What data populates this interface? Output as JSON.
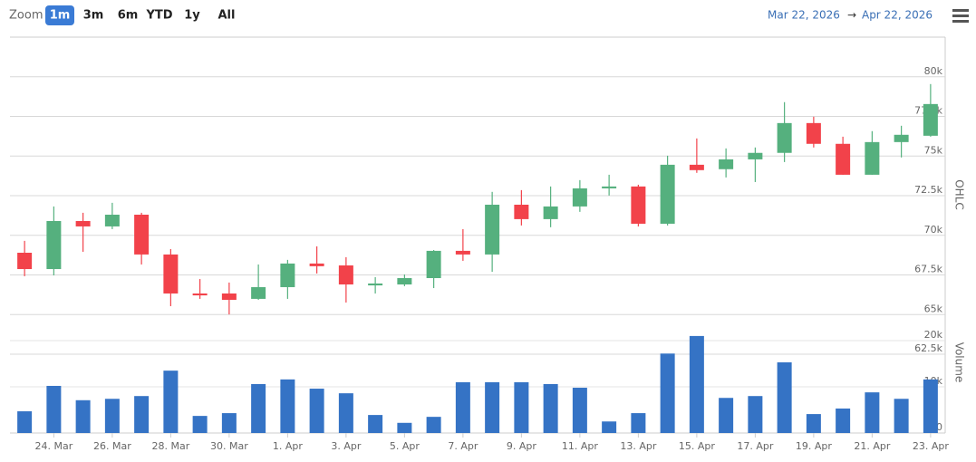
{
  "toolbar": {
    "zoom_label": "Zoom",
    "buttons": [
      "1m",
      "3m",
      "6m",
      "YTD",
      "1y",
      "All"
    ],
    "selected": 0,
    "date_from": "Mar 22, 2026",
    "arrow": "→",
    "date_to": "Apr 22, 2026"
  },
  "chart_data": {
    "type": "candlestick",
    "categories": [
      null,
      "24. Mar",
      null,
      "26. Mar",
      null,
      "28. Mar",
      null,
      "30. Mar",
      null,
      "1. Apr",
      null,
      "3. Apr",
      null,
      "5. Apr",
      null,
      "7. Apr",
      null,
      "9. Apr",
      null,
      "11. Apr",
      null,
      "13. Apr",
      null,
      "15. Apr",
      null,
      "17. Apr",
      null,
      "19. Apr",
      null,
      "21. Apr",
      null,
      "23. Apr"
    ],
    "ylabel": "OHLC",
    "y2label": "Volume",
    "ylim": [
      62500,
      82500
    ],
    "yticks": [
      {
        "value": 62500,
        "label": "62.5k"
      },
      {
        "value": 65000,
        "label": "65k"
      },
      {
        "value": 67500,
        "label": "67.5k"
      },
      {
        "value": 70000,
        "label": "70k"
      },
      {
        "value": 72500,
        "label": "72.5k"
      },
      {
        "value": 75000,
        "label": "75k"
      },
      {
        "value": 77500,
        "label": "77.5k"
      },
      {
        "value": 80000,
        "label": "80k"
      }
    ],
    "y2lim": [
      0,
      20000
    ],
    "y2ticks": [
      0,
      {
        "value": 10000,
        "label": "10k"
      },
      {
        "value": 20000,
        "label": "20k"
      }
    ],
    "grid": true,
    "series": [
      {
        "type": "candlestick",
        "up_color": "#55b07e",
        "down_color": "#f2424a",
        "open": [
          68900,
          67870,
          70900,
          70560,
          71300,
          68790,
          66330,
          66330,
          65990,
          66730,
          68220,
          68100,
          66840,
          66900,
          67300,
          69020,
          68790,
          71930,
          71020,
          71820,
          72960,
          73080,
          70730,
          74450,
          74170,
          74790,
          75200,
          77080,
          75770,
          73820,
          75880,
          76280
        ],
        "high": [
          69650,
          71820,
          71420,
          72050,
          71420,
          69130,
          67240,
          67020,
          68160,
          68450,
          69300,
          68620,
          67360,
          67530,
          69070,
          70390,
          72740,
          72850,
          73080,
          73480,
          73820,
          73190,
          75020,
          76110,
          75480,
          75540,
          78400,
          77480,
          76220,
          76570,
          76910,
          79540
        ],
        "low": [
          67420,
          67470,
          68960,
          70390,
          68160,
          65530,
          65990,
          65010,
          65930,
          65990,
          67590,
          65760,
          66330,
          66790,
          66670,
          68390,
          67700,
          70620,
          70510,
          71480,
          72510,
          70560,
          70620,
          73940,
          73650,
          73360,
          74620,
          75540,
          73820,
          73820,
          74910,
          76220
        ],
        "close": [
          67870,
          70900,
          70560,
          71300,
          68790,
          66330,
          66210,
          65930,
          66730,
          68220,
          68050,
          66900,
          66960,
          67300,
          69020,
          68790,
          71930,
          71020,
          71820,
          72960,
          73080,
          70730,
          74450,
          74110,
          74790,
          75200,
          77080,
          75770,
          73820,
          75880,
          76340,
          78280
        ]
      },
      {
        "type": "column",
        "axis": "y2",
        "color": "#3573c5",
        "values": [
          4700,
          10200,
          7100,
          7400,
          8000,
          13500,
          3700,
          4300,
          10600,
          11600,
          9600,
          8600,
          3900,
          2200,
          3500,
          11000,
          11000,
          11000,
          10600,
          9800,
          2500,
          4300,
          17200,
          21000,
          7600,
          8000,
          15300,
          4100,
          5300,
          8800,
          7400,
          11600
        ]
      }
    ]
  }
}
